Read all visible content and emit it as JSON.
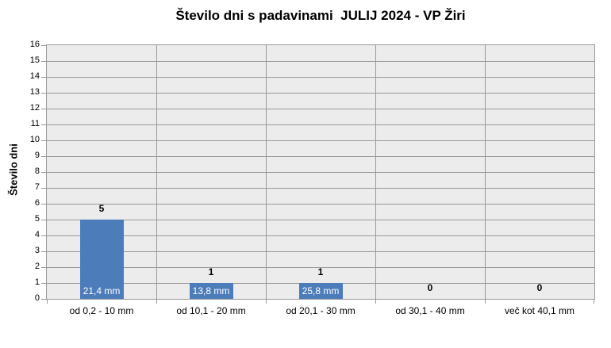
{
  "chart_data": {
    "type": "bar",
    "title": "Število dni s padavinami  JULIJ 2024 - VP Žiri",
    "ylabel": "Število dni",
    "xlabel": "",
    "categories": [
      "od 0,2 - 10 mm",
      "od 10,1 - 20 mm",
      "od 20,1 - 30 mm",
      "od 30,1 - 40 mm",
      "več kot 40,1 mm"
    ],
    "values": [
      5,
      1,
      1,
      0,
      0
    ],
    "value_labels": [
      "5",
      "1",
      "1",
      "0",
      "0"
    ],
    "bar_inner_labels": [
      "21,4 mm",
      "13,8 mm",
      "25,8 mm",
      "",
      ""
    ],
    "ylim": [
      0,
      16
    ],
    "ytick_step": 1,
    "grid": true,
    "legend": "none",
    "colors": {
      "bar": "#4D7CBA",
      "plot_bg": "#ECECEC",
      "gridline": "#999999",
      "axis_text": "#000000",
      "inner_label_text": "#FFFFFF"
    }
  }
}
